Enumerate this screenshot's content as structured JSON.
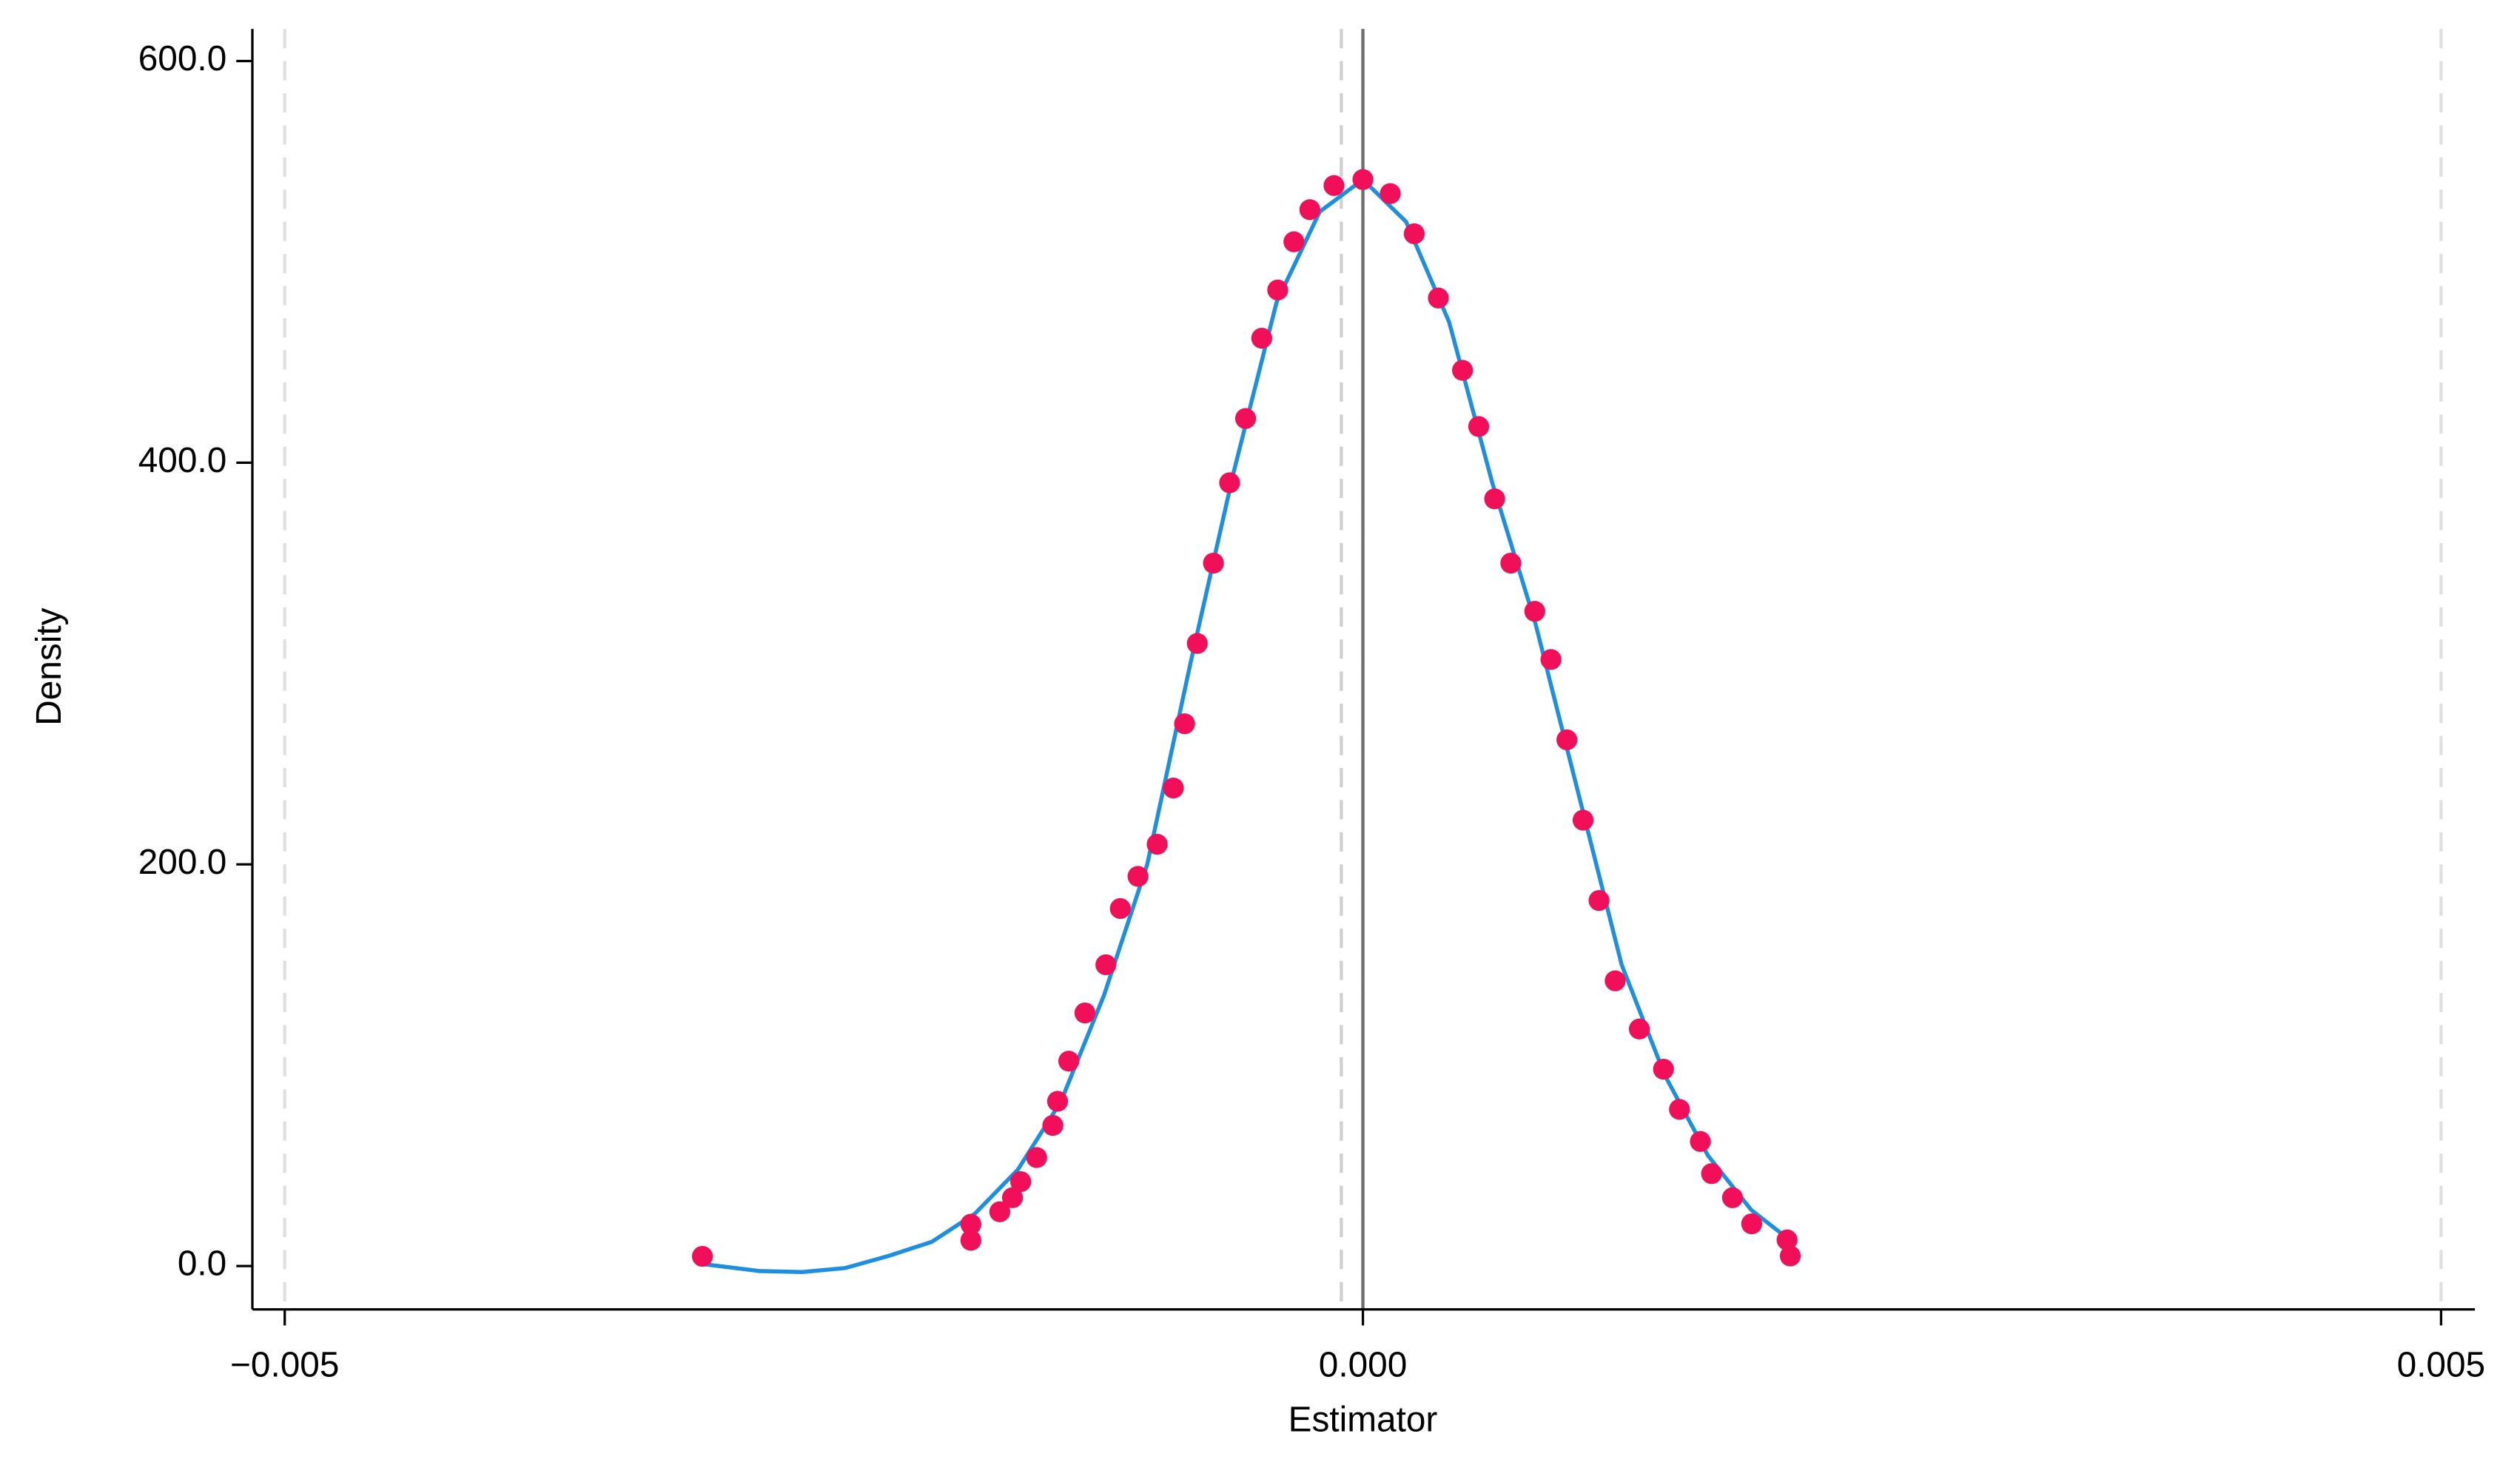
{
  "chart_data": {
    "type": "scatter",
    "x_label": "Estimator",
    "y_label": "Density",
    "xlim": [
      -0.00515,
      0.005157
    ],
    "ylim": [
      -21.6,
      616
    ],
    "xticks": [
      {
        "value": -0.005,
        "label": "−0.005"
      },
      {
        "value": 0,
        "label": "0.000"
      },
      {
        "value": 0.005,
        "label": "0.005"
      }
    ],
    "yticks": [
      {
        "value": 0,
        "label": "0.0"
      },
      {
        "value": 200,
        "label": "200.0"
      },
      {
        "value": 400,
        "label": "400.0"
      },
      {
        "value": 600,
        "label": "600.0"
      }
    ],
    "grid": true,
    "vlines": [
      {
        "value": 0,
        "style": "solid",
        "color": "#6e6e6e"
      },
      {
        "value": -0.0001,
        "style": "dashed",
        "color": "#d0d0d0"
      }
    ],
    "series": [
      {
        "type": "line",
        "color": "#1e8fe0",
        "x": [
          -0.003063,
          -0.0028,
          -0.0026,
          -0.0024,
          -0.0022,
          -0.002,
          -0.0018,
          -0.0016,
          -0.0014,
          -0.0012,
          -0.001,
          -0.0008,
          -0.0006,
          -0.0004,
          -0.0002,
          0,
          0.0002,
          0.0004,
          0.0006,
          0.0008,
          0.001,
          0.0012,
          0.0014,
          0.0016,
          0.0018,
          0.001967
        ],
        "values": [
          1,
          -2.5,
          -3,
          -1,
          5,
          12,
          26,
          48,
          82,
          135,
          200,
          300,
          395,
          480,
          525,
          541,
          520,
          470,
          390,
          320,
          235,
          150,
          95,
          55,
          28,
          14
        ]
      },
      {
        "type": "scatter",
        "color": "#f20f5a",
        "x": [
          -0.003063,
          -0.001818,
          -0.001818,
          -0.001684,
          -0.001625,
          -0.001587,
          -0.001513,
          -0.001438,
          -0.001416,
          -0.001364,
          -0.001289,
          -0.001192,
          -0.001125,
          -0.001043,
          -0.000954,
          -0.000879,
          -0.000827,
          -0.000768,
          -0.000693,
          -0.000618,
          -0.000544,
          -0.000469,
          -0.000395,
          -0.00032,
          -0.000246,
          -0.000134,
          0,
          0.000127,
          0.000238,
          0.00035,
          0.000462,
          0.000537,
          0.000611,
          0.000686,
          0.000797,
          0.000872,
          0.000946,
          0.001021,
          0.001095,
          0.00117,
          0.001282,
          0.001394,
          0.001468,
          0.001565,
          0.001617,
          0.001714,
          0.001803,
          0.001967,
          0.001982
        ],
        "values": [
          4.8,
          20.8,
          12.8,
          27,
          34,
          42,
          54,
          70,
          82,
          102,
          126,
          150,
          178,
          194,
          210,
          238,
          270,
          310,
          350,
          390,
          422,
          462,
          486,
          510,
          526,
          538,
          541,
          534,
          514,
          482,
          446,
          418,
          382,
          350,
          326,
          302,
          262,
          222,
          182,
          142,
          118,
          98,
          78,
          62,
          46,
          34,
          21,
          13,
          5
        ]
      }
    ]
  }
}
